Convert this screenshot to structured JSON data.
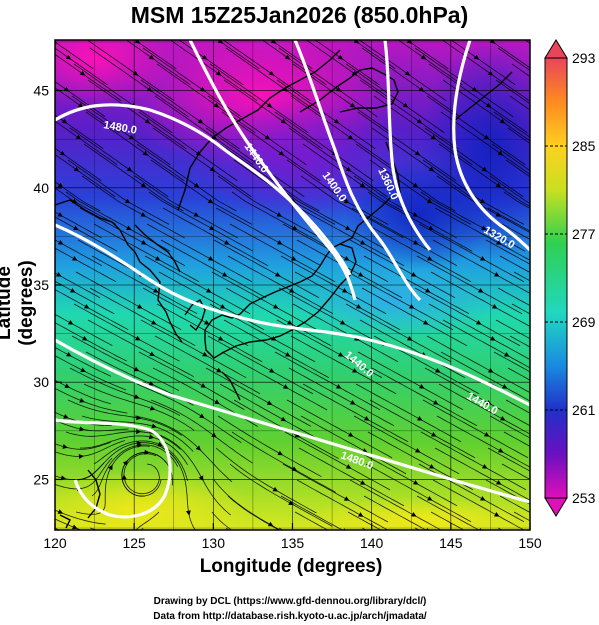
{
  "title": "MSM 15Z25Jan2026 (850.0hPa)",
  "xlabel": "Longitude (degrees)",
  "ylabel": "Latitude  (degrees)",
  "credit_line1": "Drawing by DCL (https://www.gfd-dennou.org/library/dcl/)",
  "credit_line2": "Data from http://database.rish.kyoto-u.ac.jp/arch/jmadata/",
  "map": {
    "lon_ticks": [
      "120",
      "125",
      "130",
      "135",
      "140",
      "145",
      "150"
    ],
    "lat_ticks": [
      "25",
      "30",
      "35",
      "40",
      "45"
    ],
    "contour_labels": [
      "1480.0",
      "1440.0",
      "1400.0",
      "1360.0",
      "1320.0",
      "1440.0",
      "1440.0",
      "1480.0"
    ]
  },
  "colorbar": {
    "labels": [
      "293",
      "285",
      "277",
      "269",
      "261",
      "253"
    ],
    "colors": [
      "#e8455a",
      "#ff8a20",
      "#ffd020",
      "#c8e020",
      "#30d050",
      "#20d8c0",
      "#1a8ae0",
      "#2030c8",
      "#6a10c0",
      "#e010b8"
    ]
  },
  "chart_data": {
    "type": "heatmap",
    "title": "MSM 15Z25Jan2026 (850.0hPa)",
    "xlabel": "Longitude (degrees)",
    "ylabel": "Latitude  (degrees)",
    "xlim": [
      120,
      150
    ],
    "ylim": [
      22.4,
      47.6
    ],
    "colorbar_range": [
      253,
      293
    ],
    "colorbar_ticks": [
      293,
      285,
      277,
      269,
      261,
      253
    ],
    "contour_levels": [
      1480.0,
      1440.0,
      1400.0,
      1360.0,
      1320.0
    ],
    "grid": true
  }
}
